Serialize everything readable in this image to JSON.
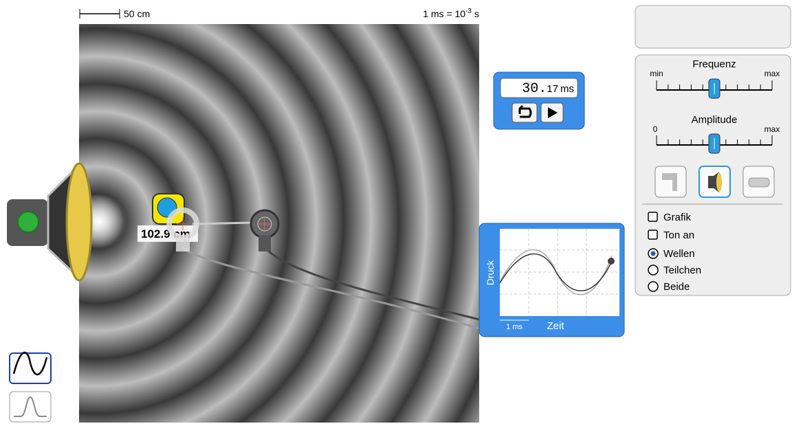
{
  "scale": {
    "length": "50 cm",
    "time": {
      "base": "1 ms = 10",
      "exponent": "-3",
      "unit": "s"
    }
  },
  "timer": {
    "whole": "30.",
    "fraction": "17",
    "unit": "ms"
  },
  "tape_measure": {
    "reading": "102.9 cm"
  },
  "graph": {
    "y_label": "Druck",
    "x_label": "Zeit",
    "scale": "1 ms"
  },
  "controls": {
    "frequency": {
      "label": "Frequenz",
      "min": "min",
      "max": "max",
      "value": 0.5
    },
    "amplitude": {
      "label": "Amplitude",
      "min": "0",
      "max": "max",
      "value": 0.5
    },
    "checkboxes": [
      {
        "label": "Grafik",
        "checked": false
      },
      {
        "label": "Ton an",
        "checked": false
      }
    ],
    "radios": [
      {
        "label": "Wellen",
        "selected": true
      },
      {
        "label": "Teilchen",
        "selected": false
      },
      {
        "label": "Beide",
        "selected": false
      }
    ]
  }
}
